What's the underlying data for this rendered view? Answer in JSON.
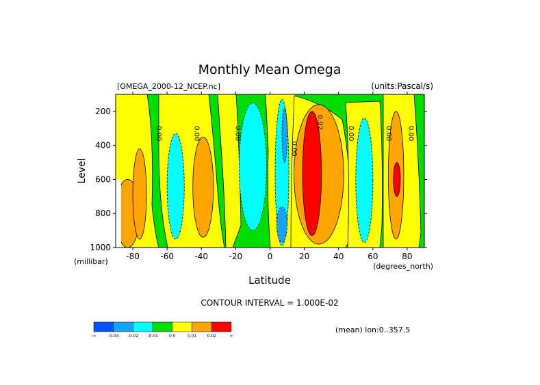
{
  "chart_data": {
    "type": "heatmap",
    "title": "Monthly Mean Omega",
    "file_label": "[OMEGA_2000-12_NCEP.nc]",
    "units_label": "(units:Pascal/s)",
    "xlabel": "Latitude",
    "x_units": "(degrees_north)",
    "ylabel": "Level",
    "y_units": "(millibar)",
    "xlim": [
      -90,
      90
    ],
    "ylim": [
      1000,
      100
    ],
    "x_ticks": [
      -80,
      -60,
      -40,
      -20,
      0,
      20,
      40,
      60,
      80
    ],
    "y_ticks": [
      200,
      400,
      600,
      800,
      1000
    ],
    "contour_interval_text": "CONTOUR INTERVAL = 1.000E-02",
    "mean_note": "(mean) lon:0..357.5",
    "contour_labels": [
      {
        "text": "0.00",
        "lat": -66,
        "lev": 330
      },
      {
        "text": "0.00",
        "lat": -44,
        "lev": 330
      },
      {
        "text": "0.00",
        "lat": -20,
        "lev": 330
      },
      {
        "text": "0.00",
        "lat": 13,
        "lev": 420
      },
      {
        "text": "0.02",
        "lat": 28,
        "lev": 265
      },
      {
        "text": "0.00",
        "lat": 46,
        "lev": 330
      },
      {
        "text": "0.00",
        "lat": 68,
        "lev": 330
      },
      {
        "text": "0.00",
        "lat": 81,
        "lev": 330
      }
    ],
    "colorbar": {
      "colors": [
        "#0055ff",
        "#14a3ff",
        "#00ffff",
        "#00dd00",
        "#ffff00",
        "#ffa500",
        "#ff0000"
      ],
      "labels": [
        "-∞",
        "-0.04",
        "-0.02",
        "-0.01",
        "0.0",
        "0.01",
        "0.02",
        "∞"
      ]
    },
    "regions": [
      {
        "lat": [
          -90,
          -76
        ],
        "lev": [
          600,
          1000
        ],
        "value": 0.015,
        "color": "#ffa500"
      },
      {
        "lat": [
          -80,
          -72
        ],
        "lev": [
          420,
          950
        ],
        "value": 0.015,
        "color": "#ffa500"
      },
      {
        "lat": [
          -60,
          -50
        ],
        "lev": [
          330,
          950
        ],
        "value": -0.02,
        "color": "#00ffff"
      },
      {
        "lat": [
          -45,
          -33
        ],
        "lev": [
          350,
          940
        ],
        "value": 0.015,
        "color": "#ffa500"
      },
      {
        "lat": [
          -18,
          -2
        ],
        "lev": [
          150,
          900
        ],
        "value": -0.02,
        "color": "#00ffff"
      },
      {
        "lat": [
          3,
          11
        ],
        "lev": [
          130,
          990
        ],
        "value": -0.02,
        "color": "#00ffff"
      },
      {
        "lat": [
          7,
          10
        ],
        "lev": [
          180,
          500
        ],
        "value": -0.04,
        "color": "#14a3ff"
      },
      {
        "lat": [
          4,
          10
        ],
        "lev": [
          760,
          970
        ],
        "value": -0.04,
        "color": "#14a3ff"
      },
      {
        "lat": [
          14,
          43
        ],
        "lev": [
          160,
          980
        ],
        "value": 0.015,
        "color": "#ffa500"
      },
      {
        "lat": [
          19,
          30
        ],
        "lev": [
          200,
          930
        ],
        "value": 0.025,
        "color": "#ff0000"
      },
      {
        "lat": [
          50,
          60
        ],
        "lev": [
          240,
          970
        ],
        "value": -0.02,
        "color": "#00ffff"
      },
      {
        "lat": [
          69,
          78
        ],
        "lev": [
          200,
          950
        ],
        "value": 0.015,
        "color": "#ffa500"
      },
      {
        "lat": [
          72,
          76
        ],
        "lev": [
          500,
          700
        ],
        "value": 0.025,
        "color": "#ff0000"
      }
    ]
  }
}
